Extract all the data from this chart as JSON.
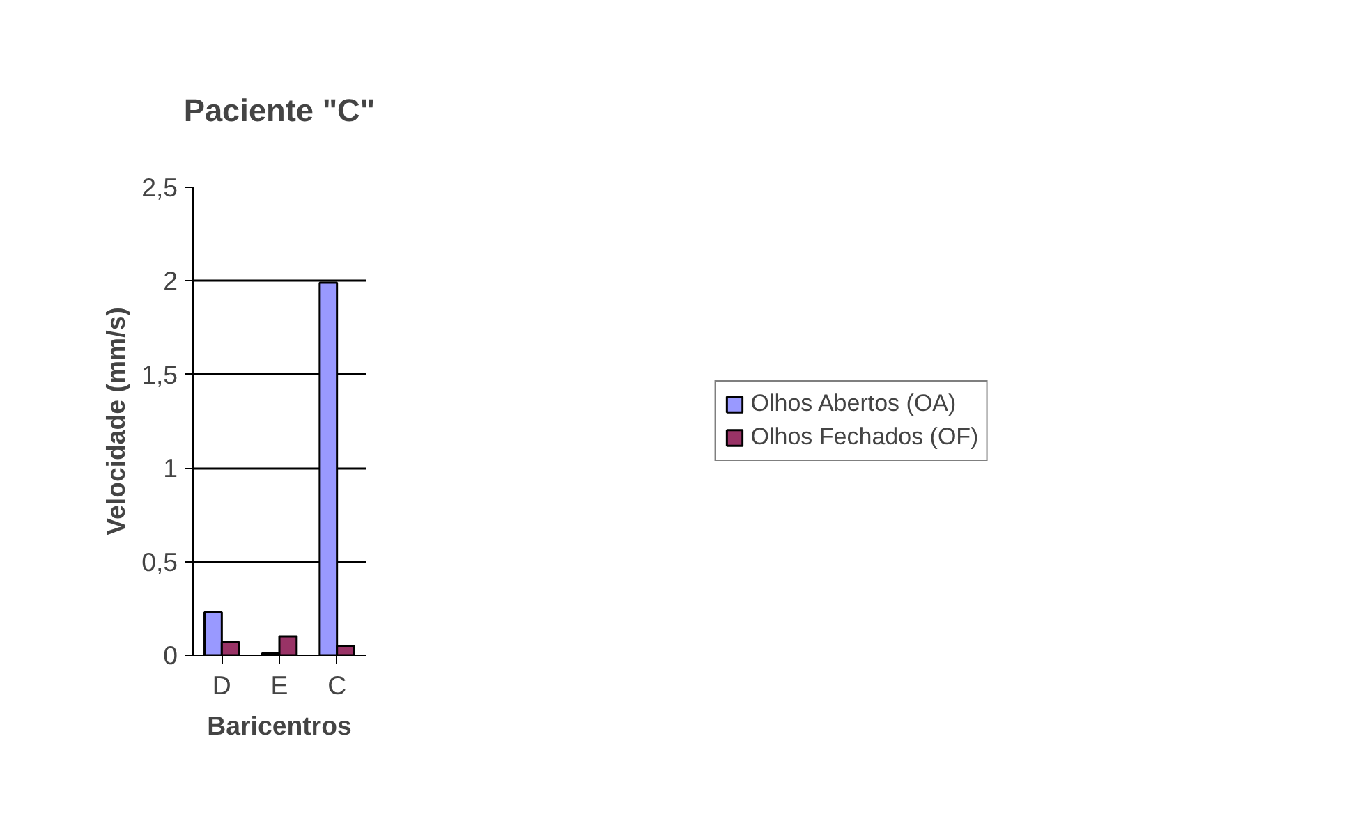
{
  "chart_data": {
    "type": "bar",
    "title": "Paciente \"C\"",
    "xlabel": "Baricentros",
    "ylabel": "Velocidade (mm/s)",
    "categories": [
      "D",
      "E",
      "C"
    ],
    "series": [
      {
        "name": "Olhos Abertos (OA)",
        "color": "#9999ff",
        "values": [
          0.23,
          0.01,
          1.99
        ]
      },
      {
        "name": "Olhos Fechados (OF)",
        "color": "#993366",
        "values": [
          0.07,
          0.1,
          0.05
        ]
      }
    ],
    "ylim": [
      0,
      2.5
    ],
    "yticks": [
      {
        "value": 0,
        "label": "0"
      },
      {
        "value": 0.5,
        "label": "0,5"
      },
      {
        "value": 1,
        "label": "1"
      },
      {
        "value": 1.5,
        "label": "1,5"
      },
      {
        "value": 2,
        "label": "2"
      },
      {
        "value": 2.5,
        "label": "2,5"
      }
    ],
    "grid": "y",
    "legend": "right"
  }
}
